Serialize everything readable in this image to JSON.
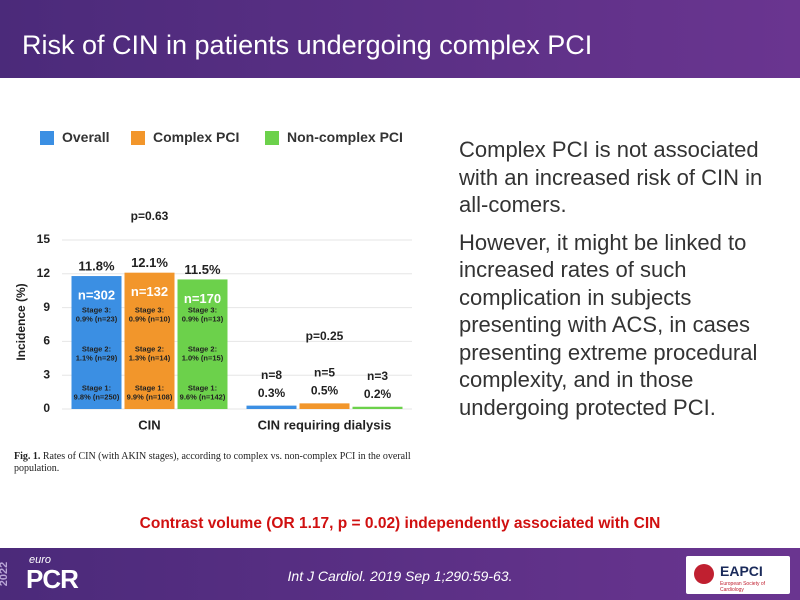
{
  "header": {
    "title": "Risk of CIN in patients undergoing complex PCI"
  },
  "chart_data": {
    "type": "bar",
    "ylabel": "Incidence (%)",
    "categories": [
      "CIN",
      "CIN requiring dialysis"
    ],
    "series": [
      {
        "name": "Overall",
        "color": "#3b8fe3",
        "values": [
          11.8,
          0.3
        ],
        "value_labels": [
          "11.8%",
          "0.3%"
        ],
        "n_labels": [
          "n=302",
          "n=8"
        ],
        "stages": [
          [
            "Stage 3:",
            "0.9% (n=23)"
          ],
          [
            "Stage 2:",
            "1.1% (n=29)"
          ],
          [
            "Stage 1:",
            "9.8% (n=250)"
          ]
        ]
      },
      {
        "name": "Complex PCI",
        "color": "#f2962b",
        "values": [
          12.1,
          0.5
        ],
        "value_labels": [
          "12.1%",
          "0.5%"
        ],
        "n_labels": [
          "n=132",
          "n=5"
        ],
        "stages": [
          [
            "Stage 3:",
            "0.9% (n=10)"
          ],
          [
            "Stage 2:",
            "1.3% (n=14)"
          ],
          [
            "Stage 1:",
            "9.9% (n=108)"
          ]
        ]
      },
      {
        "name": "Non-complex PCI",
        "color": "#6cd14b",
        "values": [
          11.5,
          0.2
        ],
        "value_labels": [
          "11.5%",
          "0.2%"
        ],
        "n_labels": [
          "n=170",
          "n=3"
        ],
        "stages": [
          [
            "Stage 3:",
            "0.9% (n=13)"
          ],
          [
            "Stage 2:",
            "1.0% (n=15)"
          ],
          [
            "Stage 1:",
            "9.6% (n=142)"
          ]
        ]
      }
    ],
    "p_values": [
      "p=0.63",
      "p=0.25"
    ],
    "ylim": [
      0,
      15
    ],
    "yticks": [
      0,
      3,
      6,
      9,
      12,
      15
    ],
    "grid": true,
    "caption": {
      "label": "Fig. 1.",
      "text": "Rates of CIN (with AKIN stages), according to complex vs. non-complex PCI in the overall population."
    }
  },
  "side_text": [
    "Complex PCI is not associated with an increased risk of CIN in all-comers.",
    "However, it might be linked to increased rates of such complication in subjects presenting with ACS, in cases presenting extreme procedural complexity, and in those undergoing protected PCI."
  ],
  "highlight": "Contrast volume (OR 1.17, p = 0.02) independently associated with CIN",
  "footer": {
    "citation": "Int J Cardiol. 2019 Sep 1;290:59-63.",
    "year": "2022",
    "brand_top": "euro",
    "brand": "PCR",
    "society": "EAPCI",
    "society_sub": "European Society of Cardiology"
  }
}
